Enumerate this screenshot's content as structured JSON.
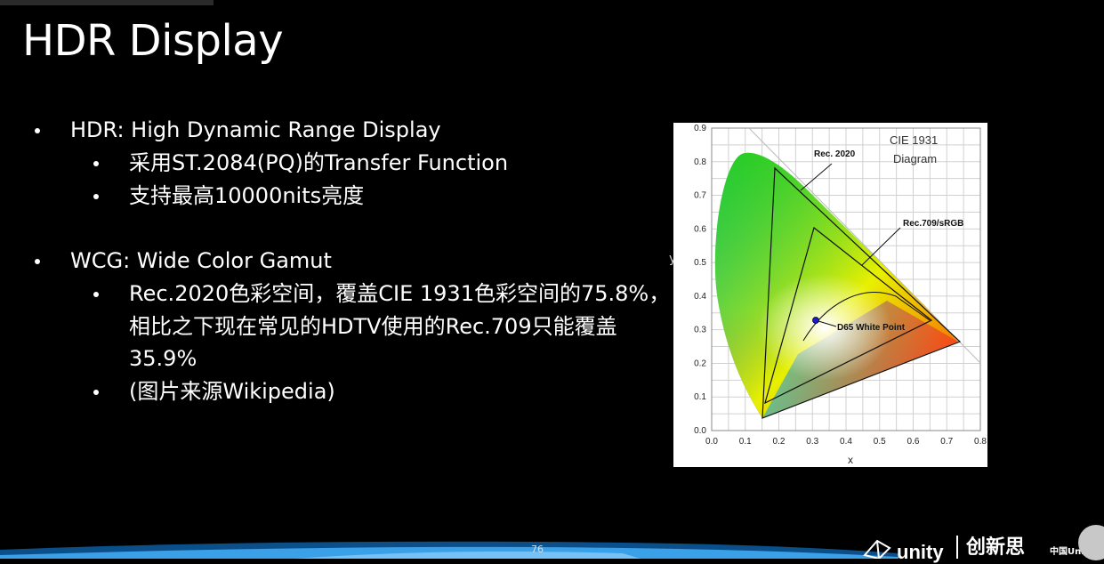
{
  "slide": {
    "title": "HDR Display",
    "page_number": "76"
  },
  "bullets": [
    {
      "level": 1,
      "text": "HDR: High Dynamic Range Display"
    },
    {
      "level": 2,
      "text": "采用ST.2084(PQ)的Transfer Function"
    },
    {
      "level": 2,
      "text": "支持最高10000nits亮度"
    },
    {
      "level": 1,
      "text": "WCG: Wide Color Gamut"
    },
    {
      "level": 2,
      "text": "Rec.2020色彩空间，覆盖CIE 1931色彩空间的75.8%，"
    },
    {
      "level": 0,
      "text": "相比之下现在常见的HDTV使用的Rec.709只能覆盖"
    },
    {
      "level": 0,
      "text": "35.9%"
    },
    {
      "level": 2,
      "text": "(图片来源Wikipedia)"
    }
  ],
  "figure": {
    "title_line1": "CIE 1931",
    "title_line2": "Diagram",
    "label_rec2020": "Rec. 2020",
    "label_rec709": "Rec.709/sRGB",
    "label_d65": "D65 White Point",
    "x_label": "x",
    "y_label": "y",
    "x_ticks": [
      "0.0",
      "0.1",
      "0.2",
      "0.3",
      "0.4",
      "0.5",
      "0.6",
      "0.7",
      "0.8"
    ],
    "y_ticks": [
      "0.0",
      "0.1",
      "0.2",
      "0.3",
      "0.4",
      "0.5",
      "0.6",
      "0.7",
      "0.8",
      "0.9"
    ]
  },
  "footer": {
    "logo_unity": "unity",
    "logo_cn": "创新思",
    "logo_cn_small": "中国Unity"
  },
  "colors": {
    "background": "#000000",
    "text": "#ffffff"
  }
}
